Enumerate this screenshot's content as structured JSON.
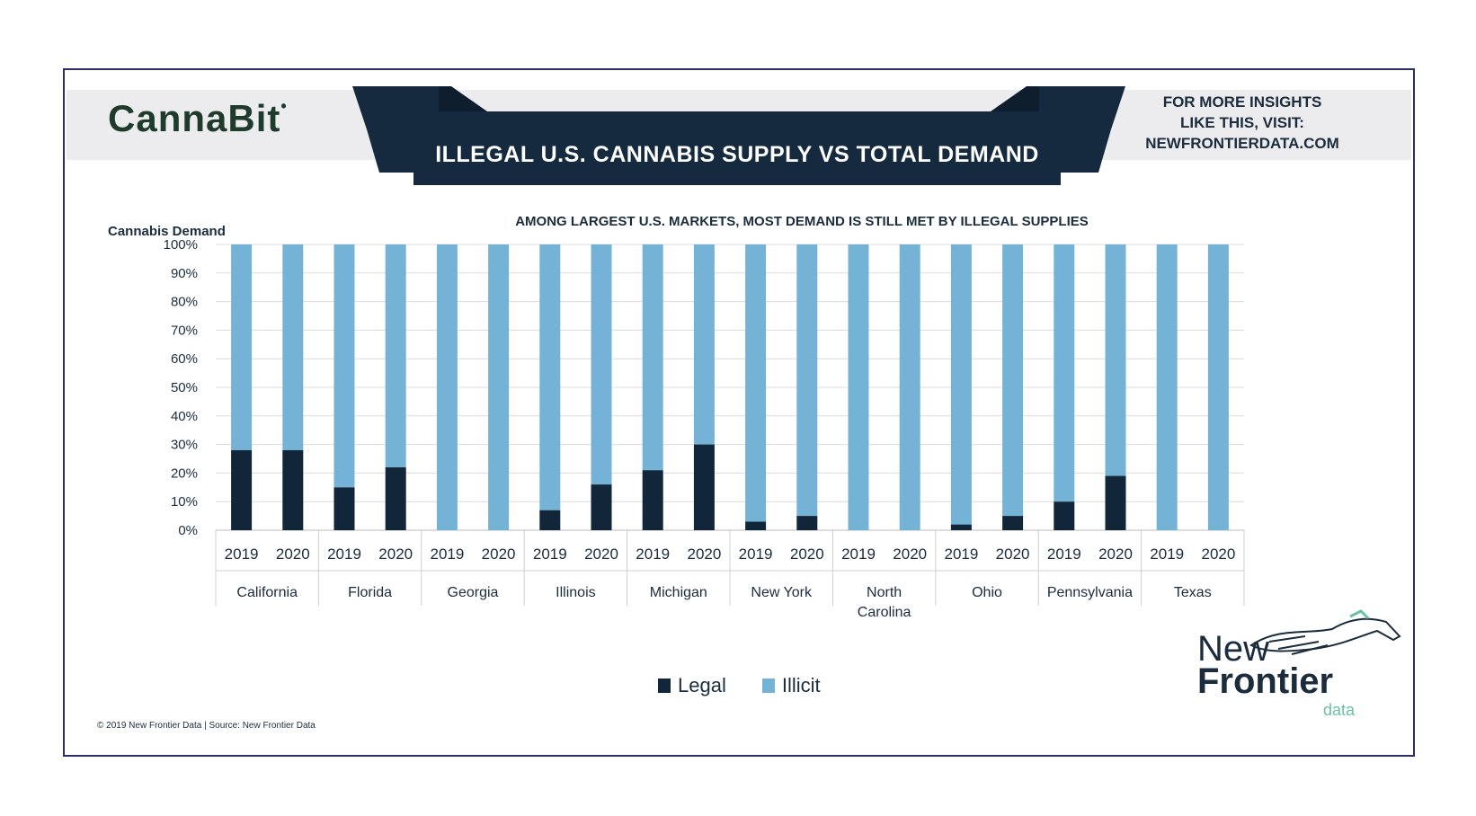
{
  "header": {
    "brand": "CannaBit",
    "title": "ILLEGAL U.S. CANNABIS SUPPLY VS TOTAL DEMAND",
    "visit_line1": "FOR MORE INSIGHTS",
    "visit_line2": "LIKE THIS, VISIT:",
    "visit_line3": "NEWFRONTIERDATA.COM"
  },
  "footer": "© 2019 New Frontier Data | Source: New Frontier Data",
  "logo": {
    "line1": "New",
    "line2": "Frontier",
    "line3": "data"
  },
  "colors": {
    "legal": "#12263a",
    "illicit": "#74b3d6",
    "grid": "#dcdcdc",
    "ribbon": "#152a3e"
  },
  "chart_data": {
    "type": "bar",
    "stacked": true,
    "subtitle": "AMONG LARGEST U.S. MARKETS, MOST DEMAND IS STILL MET BY ILLEGAL SUPPLIES",
    "ylabel": "Cannabis Demand",
    "ylim": [
      0,
      100
    ],
    "yticks": [
      "0%",
      "10%",
      "20%",
      "30%",
      "40%",
      "50%",
      "60%",
      "70%",
      "80%",
      "90%",
      "100%"
    ],
    "groups": [
      "California",
      "Florida",
      "Georgia",
      "Illinois",
      "Michigan",
      "New York",
      "North Carolina",
      "Ohio",
      "Pennsylvania",
      "Texas"
    ],
    "years": [
      "2019",
      "2020"
    ],
    "series": [
      {
        "name": "Legal",
        "values": [
          [
            28,
            28
          ],
          [
            15,
            22
          ],
          [
            0,
            0
          ],
          [
            7,
            16
          ],
          [
            21,
            30
          ],
          [
            3,
            5
          ],
          [
            0,
            0
          ],
          [
            2,
            5
          ],
          [
            10,
            19
          ],
          [
            0,
            0
          ]
        ]
      },
      {
        "name": "Illicit",
        "values": [
          [
            72,
            72
          ],
          [
            85,
            78
          ],
          [
            100,
            100
          ],
          [
            93,
            84
          ],
          [
            79,
            70
          ],
          [
            97,
            95
          ],
          [
            100,
            100
          ],
          [
            98,
            95
          ],
          [
            90,
            81
          ],
          [
            100,
            100
          ]
        ]
      }
    ],
    "legend_position": "bottom-center",
    "grid": true
  }
}
